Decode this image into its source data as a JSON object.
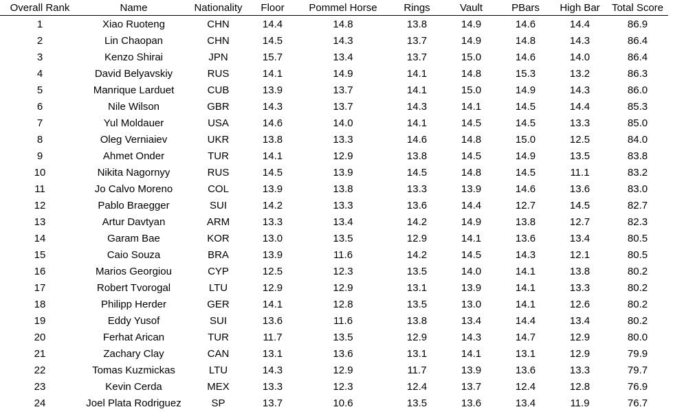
{
  "table": {
    "headers": [
      "Overall Rank",
      "Name",
      "Nationality",
      "Floor",
      "Pommel Horse",
      "Rings",
      "Vault",
      "PBars",
      "High Bar",
      "Total Score"
    ],
    "rows": [
      [
        "1",
        "Xiao Ruoteng",
        "CHN",
        "14.4",
        "14.8",
        "13.8",
        "14.9",
        "14.6",
        "14.4",
        "86.9"
      ],
      [
        "2",
        "Lin Chaopan",
        "CHN",
        "14.5",
        "14.3",
        "13.7",
        "14.9",
        "14.8",
        "14.3",
        "86.4"
      ],
      [
        "3",
        "Kenzo Shirai",
        "JPN",
        "15.7",
        "13.4",
        "13.7",
        "15.0",
        "14.6",
        "14.0",
        "86.4"
      ],
      [
        "4",
        "David Belyavskiy",
        "RUS",
        "14.1",
        "14.9",
        "14.1",
        "14.8",
        "15.3",
        "13.2",
        "86.3"
      ],
      [
        "5",
        "Manrique Larduet",
        "CUB",
        "13.9",
        "13.7",
        "14.1",
        "15.0",
        "14.9",
        "14.3",
        "86.0"
      ],
      [
        "6",
        "Nile Wilson",
        "GBR",
        "14.3",
        "13.7",
        "14.3",
        "14.1",
        "14.5",
        "14.4",
        "85.3"
      ],
      [
        "7",
        "Yul Moldauer",
        "USA",
        "14.6",
        "14.0",
        "14.1",
        "14.5",
        "14.5",
        "13.3",
        "85.0"
      ],
      [
        "8",
        "Oleg Verniaiev",
        "UKR",
        "13.8",
        "13.3",
        "14.6",
        "14.8",
        "15.0",
        "12.5",
        "84.0"
      ],
      [
        "9",
        "Ahmet Onder",
        "TUR",
        "14.1",
        "12.9",
        "13.8",
        "14.5",
        "14.9",
        "13.5",
        "83.8"
      ],
      [
        "10",
        "Nikita Nagornyy",
        "RUS",
        "14.5",
        "13.9",
        "14.5",
        "14.8",
        "14.5",
        "11.1",
        "83.2"
      ],
      [
        "11",
        "Jo Calvo Moreno",
        "COL",
        "13.9",
        "13.8",
        "13.3",
        "13.9",
        "14.6",
        "13.6",
        "83.0"
      ],
      [
        "12",
        "Pablo Braegger",
        "SUI",
        "14.2",
        "13.3",
        "13.6",
        "14.4",
        "12.7",
        "14.5",
        "82.7"
      ],
      [
        "13",
        "Artur Davtyan",
        "ARM",
        "13.3",
        "13.4",
        "14.2",
        "14.9",
        "13.8",
        "12.7",
        "82.3"
      ],
      [
        "14",
        "Garam Bae",
        "KOR",
        "13.0",
        "13.5",
        "12.9",
        "14.1",
        "13.6",
        "13.4",
        "80.5"
      ],
      [
        "15",
        "Caio Souza",
        "BRA",
        "13.9",
        "11.6",
        "14.2",
        "14.5",
        "14.3",
        "12.1",
        "80.5"
      ],
      [
        "16",
        "Marios Georgiou",
        "CYP",
        "12.5",
        "12.3",
        "13.5",
        "14.0",
        "14.1",
        "13.8",
        "80.2"
      ],
      [
        "17",
        "Robert Tvorogal",
        "LTU",
        "12.9",
        "12.9",
        "13.1",
        "13.9",
        "14.1",
        "13.3",
        "80.2"
      ],
      [
        "18",
        "Philipp Herder",
        "GER",
        "14.1",
        "12.8",
        "13.5",
        "13.0",
        "14.1",
        "12.6",
        "80.2"
      ],
      [
        "19",
        "Eddy Yusof",
        "SUI",
        "13.6",
        "11.6",
        "13.8",
        "13.4",
        "14.4",
        "13.4",
        "80.2"
      ],
      [
        "20",
        "Ferhat Arican",
        "TUR",
        "11.7",
        "13.5",
        "12.9",
        "14.3",
        "14.7",
        "12.9",
        "80.0"
      ],
      [
        "21",
        "Zachary Clay",
        "CAN",
        "13.1",
        "13.6",
        "13.1",
        "14.1",
        "13.1",
        "12.9",
        "79.9"
      ],
      [
        "22",
        "Tomas Kuzmickas",
        "LTU",
        "14.3",
        "12.9",
        "11.7",
        "13.9",
        "13.6",
        "13.3",
        "79.7"
      ],
      [
        "23",
        "Kevin Cerda",
        "MEX",
        "13.3",
        "12.3",
        "12.4",
        "13.7",
        "12.4",
        "12.8",
        "76.9"
      ],
      [
        "24",
        "Joel Plata Rodriguez",
        "SP",
        "13.7",
        "10.6",
        "13.5",
        "13.6",
        "13.4",
        "11.9",
        "76.7"
      ]
    ]
  }
}
